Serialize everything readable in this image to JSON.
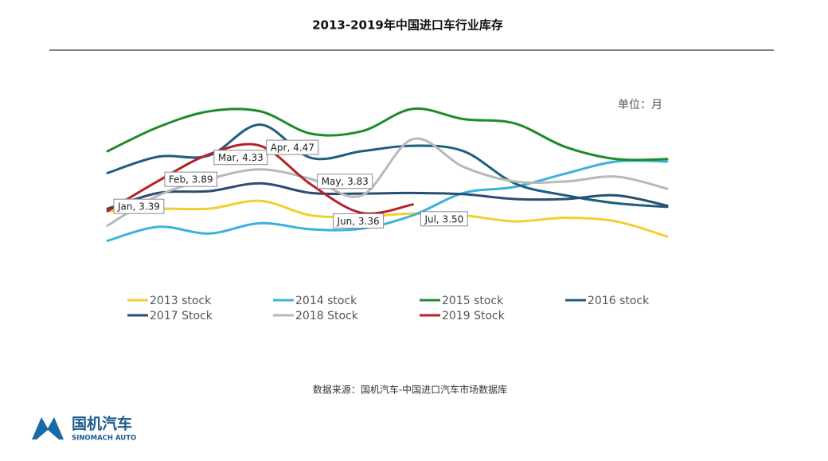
{
  "chart_data": {
    "type": "line",
    "title": "2013-2019年中国进口车行业库存",
    "note": "单位：月",
    "source": "数据来源：国机汽车-中国进口汽车市场数据库",
    "categories": [
      null,
      null,
      null,
      null,
      null,
      null,
      null,
      null,
      null,
      null,
      null,
      null
    ],
    "ylim": [
      2.8,
      5.3
    ],
    "smooth": true,
    "series": [
      {
        "name": "2013 stock",
        "color": "#f2cf2f",
        "values": [
          3.39,
          3.43,
          3.43,
          3.56,
          3.32,
          3.3,
          3.35,
          3.32,
          3.22,
          3.28,
          3.22,
          2.97
        ]
      },
      {
        "name": "2014 stock",
        "color": "#3bb3d9",
        "values": [
          2.9,
          3.13,
          3.02,
          3.19,
          3.09,
          3.1,
          3.32,
          3.69,
          3.79,
          4.01,
          4.21,
          4.21
        ]
      },
      {
        "name": "2015 stock",
        "color": "#1f8a2a",
        "values": [
          4.38,
          4.78,
          5.04,
          5.04,
          4.67,
          4.71,
          5.08,
          4.91,
          4.84,
          4.45,
          4.25,
          4.25
        ]
      },
      {
        "name": "2016 stock",
        "color": "#1e5f7e",
        "values": [
          4.02,
          4.29,
          4.31,
          4.82,
          4.27,
          4.38,
          4.47,
          4.38,
          3.85,
          3.65,
          3.52,
          3.46
        ]
      },
      {
        "name": "2017 Stock",
        "color": "#2a4d73",
        "values": [
          3.43,
          3.69,
          3.72,
          3.85,
          3.69,
          3.68,
          3.69,
          3.67,
          3.59,
          3.59,
          3.65,
          3.48
        ]
      },
      {
        "name": "2018 Stock",
        "color": "#b8b8b8",
        "values": [
          3.15,
          3.65,
          3.92,
          4.08,
          3.92,
          3.65,
          4.58,
          4.12,
          3.88,
          3.88,
          3.96,
          3.76
        ]
      },
      {
        "name": "2019 Stock",
        "color": "#b5232a",
        "values": [
          3.39,
          3.89,
          4.33,
          4.47,
          3.83,
          3.36,
          3.5,
          null,
          null,
          null,
          null,
          null
        ],
        "value_labels": [
          "Jan, 3.39",
          "Feb, 3.89",
          "Mar, 4.33",
          "Apr, 4.47",
          "May, 3.83",
          "Jun, 3.36",
          "Jul, 3.50",
          null,
          null,
          null,
          null,
          null
        ]
      }
    ]
  },
  "logo": {
    "name": "国机汽车",
    "subtitle": "SINOMACH AUTO"
  }
}
